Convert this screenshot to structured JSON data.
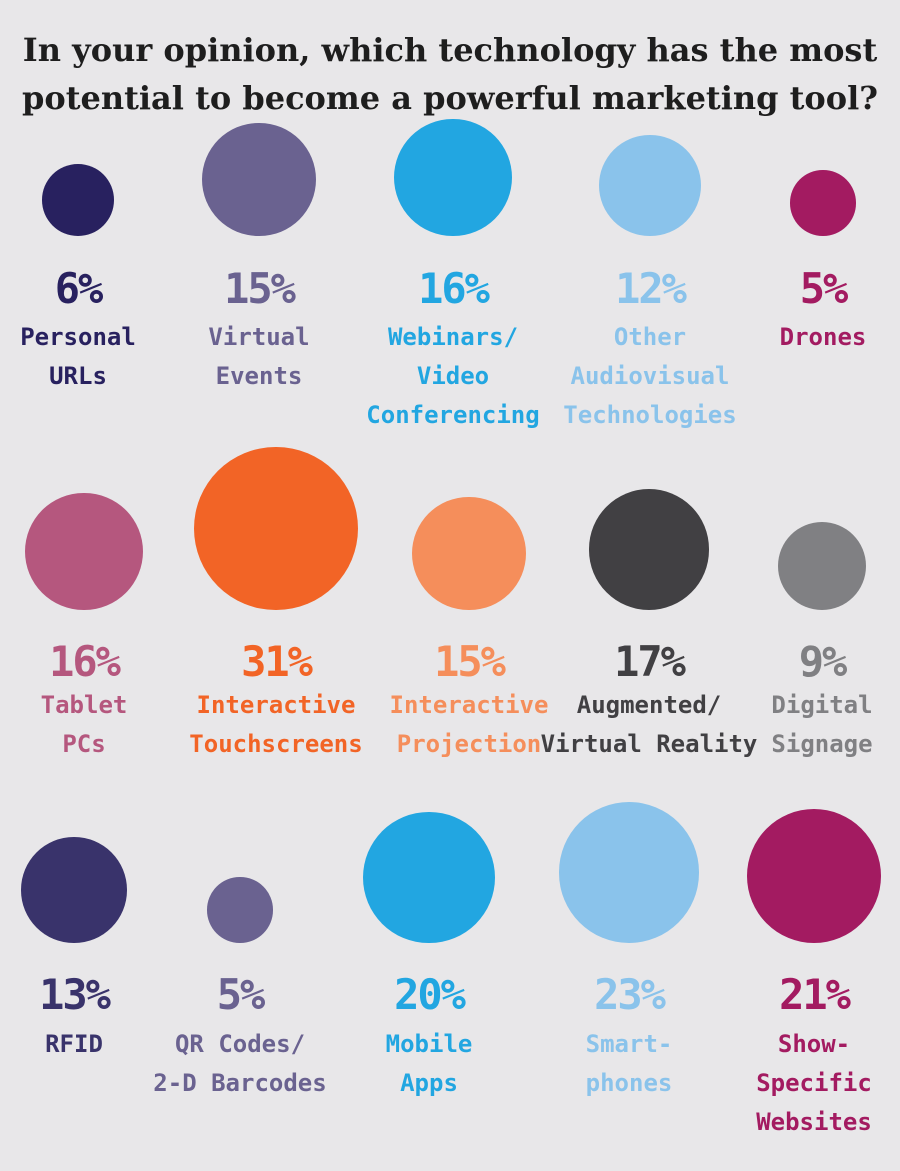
{
  "title_lines": [
    "In your opinion, which technology has the most",
    "potential to become a powerful marketing tool?"
  ],
  "chart_data": {
    "type": "bubble",
    "title": "In your opinion, which technology has the most potential to become a powerful marketing tool?",
    "unit": "%",
    "items": [
      {
        "pct_label": "6%",
        "value": 6,
        "label_lines": [
          "Personal",
          "URLs"
        ],
        "color": "#28215f"
      },
      {
        "pct_label": "15%",
        "value": 15,
        "label_lines": [
          "Virtual",
          "Events"
        ],
        "color": "#6a6290"
      },
      {
        "pct_label": "16%",
        "value": 16,
        "label_lines": [
          "Webinars/",
          "Video",
          "Conferencing"
        ],
        "color": "#22a6e1"
      },
      {
        "pct_label": "12%",
        "value": 12,
        "label_lines": [
          "Other",
          "Audiovisual",
          "Technologies"
        ],
        "color": "#8ac3eb"
      },
      {
        "pct_label": "5%",
        "value": 5,
        "label_lines": [
          "Drones"
        ],
        "color": "#a31b61"
      },
      {
        "pct_label": "16%",
        "value": 16,
        "label_lines": [
          "Tablet",
          "PCs"
        ],
        "color": "#b5577e"
      },
      {
        "pct_label": "31%",
        "value": 31,
        "label_lines": [
          "Interactive",
          "Touchscreens"
        ],
        "color": "#f26426"
      },
      {
        "pct_label": "15%",
        "value": 15,
        "label_lines": [
          "Interactive",
          "Projection"
        ],
        "color": "#f58e5b"
      },
      {
        "pct_label": "17%",
        "value": 17,
        "label_lines": [
          "Augmented/",
          "Virtual Reality"
        ],
        "color": "#414043"
      },
      {
        "pct_label": "9%",
        "value": 9,
        "label_lines": [
          "Digital",
          "Signage"
        ],
        "color": "#808083"
      },
      {
        "pct_label": "13%",
        "value": 13,
        "label_lines": [
          "RFID"
        ],
        "color": "#39336b"
      },
      {
        "pct_label": "5%",
        "value": 5,
        "label_lines": [
          "QR Codes/",
          "2-D Barcodes"
        ],
        "color": "#6a6290"
      },
      {
        "pct_label": "20%",
        "value": 20,
        "label_lines": [
          "Mobile",
          "Apps"
        ],
        "color": "#22a6e1"
      },
      {
        "pct_label": "23%",
        "value": 23,
        "label_lines": [
          "Smart-",
          "phones"
        ],
        "color": "#8ac3eb"
      },
      {
        "pct_label": "21%",
        "value": 21,
        "label_lines": [
          "Show-",
          "Specific",
          "Websites"
        ],
        "color": "#a31b61"
      }
    ]
  }
}
